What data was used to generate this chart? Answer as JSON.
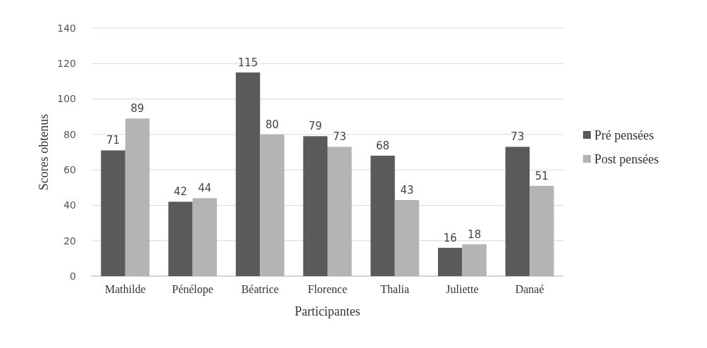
{
  "chart_data": {
    "type": "bar",
    "xlabel": "Participantes",
    "ylabel": "Scores obtenus",
    "categories": [
      "Mathilde",
      "Pénélope",
      "Béatrice",
      "Florence",
      "Thalia",
      "Juliette",
      "Danaé"
    ],
    "series": [
      {
        "name": "Pré pensées",
        "color": "#5a5a5a",
        "values": [
          71,
          42,
          115,
          79,
          68,
          16,
          73
        ]
      },
      {
        "name": "Post pensées",
        "color": "#b4b4b4",
        "values": [
          89,
          44,
          80,
          73,
          43,
          18,
          51
        ]
      }
    ],
    "ylim": [
      0,
      140
    ],
    "yticks": [
      0,
      20,
      40,
      60,
      80,
      100,
      120,
      140
    ],
    "grid": "y",
    "legend": "right",
    "data_labels": true
  }
}
